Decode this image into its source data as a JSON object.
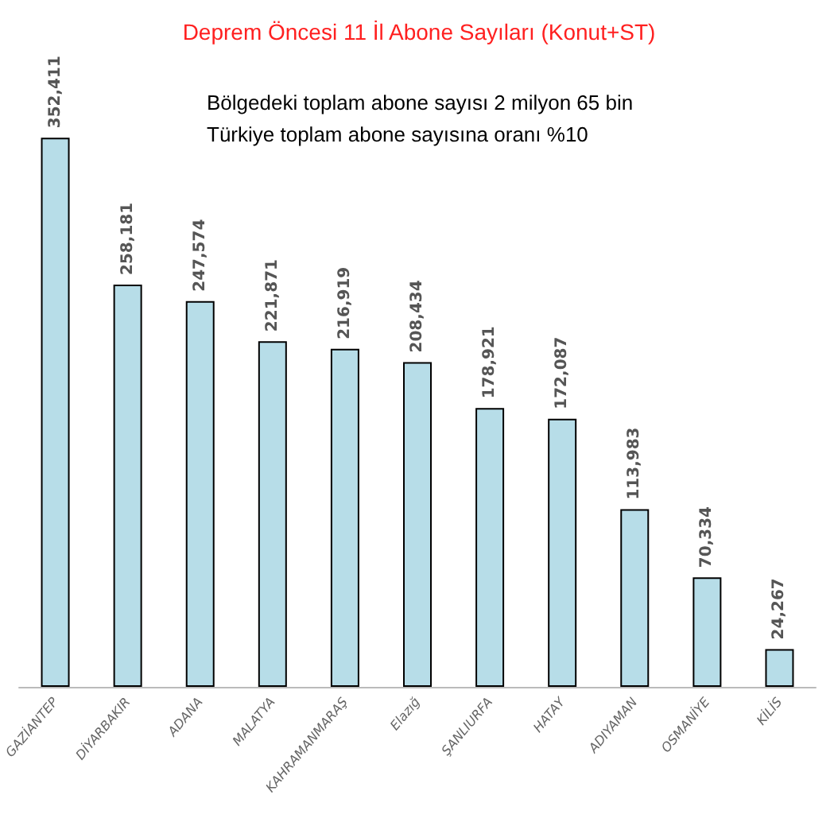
{
  "chart_data": {
    "type": "bar",
    "title": "Deprem Öncesi 11 İl Abone Sayıları (Konut+ST)",
    "annotations": [
      "Bölgedeki toplam abone sayısı 2 milyon 65 bin",
      "Türkiye toplam abone sayısına oranı %10"
    ],
    "categories": [
      "GAZİANTEP",
      "DİYARBAKIR",
      "ADANA",
      "MALATYA",
      "KAHRAMANMARAŞ",
      "Elazığ",
      "ŞANLIURFA",
      "HATAY",
      "ADIYAMAN",
      "OSMANİYE",
      "KİLİS"
    ],
    "values": [
      352411,
      258181,
      247574,
      221871,
      216919,
      208434,
      178921,
      172087,
      113983,
      70334,
      24267
    ],
    "value_labels": [
      "352,411",
      "258,181",
      "247,574",
      "221,871",
      "216,919",
      "208,434",
      "178,921",
      "172,087",
      "113,983",
      "70,334",
      "24,267"
    ],
    "color": "#b7dde8"
  }
}
